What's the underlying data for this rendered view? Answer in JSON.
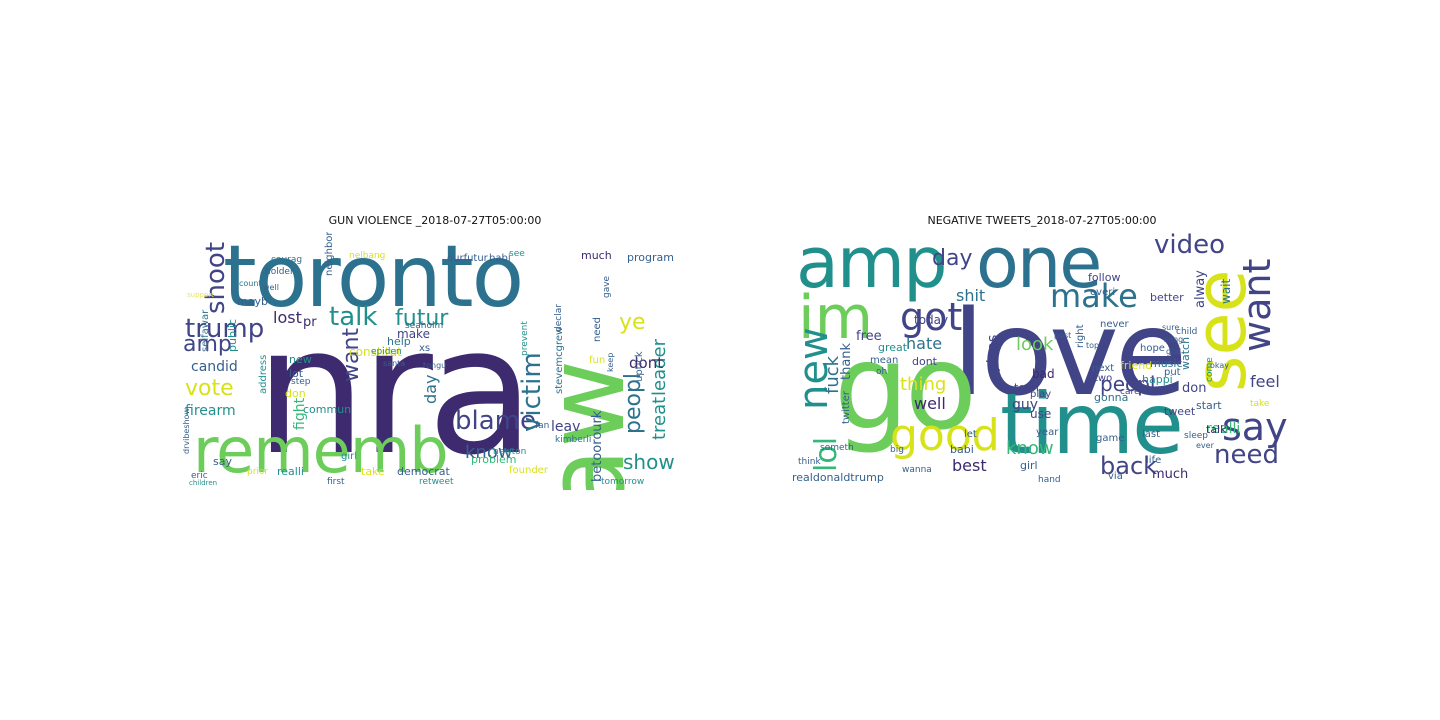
{
  "colors": {
    "purple": "#3e2a6e",
    "indigo": "#414487",
    "blue": "#355f8d",
    "slate": "#2c728e",
    "teal": "#21908d",
    "green": "#35b779",
    "lime": "#6ccd5a",
    "yellow": "#d8e219",
    "pale_yellow": "#e9e562"
  },
  "panels": [
    {
      "title": "GUN VIOLENCE _2018-07-27T05:00:00",
      "words": [
        {
          "text": "nra",
          "color": "purple"
        },
        {
          "text": "toronto",
          "color": "slate"
        },
        {
          "text": "law",
          "color": "lime"
        },
        {
          "text": "rememb",
          "color": "lime"
        },
        {
          "text": "trump",
          "color": "indigo"
        },
        {
          "text": "shoot",
          "color": "indigo"
        },
        {
          "text": "talk",
          "color": "teal"
        },
        {
          "text": "futur",
          "color": "teal"
        },
        {
          "text": "amp",
          "color": "indigo"
        },
        {
          "text": "vote",
          "color": "yellow"
        },
        {
          "text": "want",
          "color": "indigo"
        },
        {
          "text": "lost",
          "color": "purple"
        },
        {
          "text": "firearm",
          "color": "teal"
        },
        {
          "text": "candid",
          "color": "blue"
        },
        {
          "text": "blame",
          "color": "indigo"
        },
        {
          "text": "victim",
          "color": "slate"
        },
        {
          "text": "peopl",
          "color": "slate"
        },
        {
          "text": "leader",
          "color": "teal"
        },
        {
          "text": "ye",
          "color": "yellow"
        },
        {
          "text": "treat",
          "color": "teal"
        },
        {
          "text": "show",
          "color": "teal"
        },
        {
          "text": "know",
          "color": "blue"
        },
        {
          "text": "dont",
          "color": "purple"
        },
        {
          "text": "betoorourk",
          "color": "blue"
        },
        {
          "text": "leav",
          "color": "indigo"
        },
        {
          "text": "day",
          "color": "slate"
        },
        {
          "text": "fight",
          "color": "green"
        },
        {
          "text": "constitut",
          "color": "yellow"
        },
        {
          "text": "public",
          "color": "teal"
        },
        {
          "text": "selfawar",
          "color": "slate"
        },
        {
          "text": "mayb",
          "color": "blue"
        },
        {
          "text": "pr",
          "color": "purple"
        },
        {
          "text": "make",
          "color": "indigo"
        },
        {
          "text": "help",
          "color": "slate"
        },
        {
          "text": "new",
          "color": "teal"
        },
        {
          "text": "lot",
          "color": "blue"
        },
        {
          "text": "don",
          "color": "yellow"
        },
        {
          "text": "commun",
          "color": "teal"
        },
        {
          "text": "say",
          "color": "blue"
        },
        {
          "text": "realli",
          "color": "teal"
        },
        {
          "text": "take",
          "color": "yellow"
        },
        {
          "text": "democrat",
          "color": "blue"
        },
        {
          "text": "problem",
          "color": "green"
        },
        {
          "text": "founder",
          "color": "yellow"
        },
        {
          "text": "stevemcgrew",
          "color": "slate"
        },
        {
          "text": "program",
          "color": "blue"
        },
        {
          "text": "much",
          "color": "purple"
        },
        {
          "text": "need",
          "color": "blue"
        },
        {
          "text": "prevent",
          "color": "teal"
        },
        {
          "text": "uptick",
          "color": "blue"
        },
        {
          "text": "babi",
          "color": "blue"
        },
        {
          "text": "ourfutur",
          "color": "blue"
        },
        {
          "text": "holder",
          "color": "blue"
        },
        {
          "text": "courag",
          "color": "slate"
        },
        {
          "text": "neighbor",
          "color": "blue"
        },
        {
          "text": "xs",
          "color": "blue"
        },
        {
          "text": "address",
          "color": "teal"
        },
        {
          "text": "step",
          "color": "blue"
        },
        {
          "text": "prior",
          "color": "yellow"
        },
        {
          "text": "eric",
          "color": "blue"
        },
        {
          "text": "drvibeshow",
          "color": "blue"
        },
        {
          "text": "first",
          "color": "blue"
        },
        {
          "text": "retweet",
          "color": "teal"
        },
        {
          "text": "newton",
          "color": "teal"
        },
        {
          "text": "kimberli",
          "color": "slate"
        },
        {
          "text": "fan",
          "color": "blue"
        },
        {
          "text": "fun",
          "color": "yellow"
        },
        {
          "text": "keep",
          "color": "blue"
        },
        {
          "text": "gave",
          "color": "blue"
        },
        {
          "text": "declar",
          "color": "blue"
        },
        {
          "text": "tomorrow",
          "color": "teal"
        },
        {
          "text": "girl",
          "color": "teal"
        },
        {
          "text": "seaholm",
          "color": "blue"
        },
        {
          "text": "epiden",
          "color": "teal"
        },
        {
          "text": "santa",
          "color": "blue"
        },
        {
          "text": "well",
          "color": "blue"
        },
        {
          "text": "see",
          "color": "teal"
        },
        {
          "text": "nelbang",
          "color": "yellow"
        },
        {
          "text": "tongu",
          "color": "blue"
        },
        {
          "text": "support",
          "color": "pale_yellow"
        },
        {
          "text": "children",
          "color": "teal"
        },
        {
          "text": "countri",
          "color": "slate"
        }
      ]
    },
    {
      "title": "NEGATIVE TWEETS_2018-07-27T05:00:00",
      "words": [
        {
          "text": "love",
          "color": "indigo"
        },
        {
          "text": "time",
          "color": "teal"
        },
        {
          "text": "go",
          "color": "lime"
        },
        {
          "text": "amp",
          "color": "teal"
        },
        {
          "text": "one",
          "color": "slate"
        },
        {
          "text": "see",
          "color": "yellow"
        },
        {
          "text": "im",
          "color": "lime"
        },
        {
          "text": "new",
          "color": "teal"
        },
        {
          "text": "want",
          "color": "indigo"
        },
        {
          "text": "video",
          "color": "indigo"
        },
        {
          "text": "make",
          "color": "slate"
        },
        {
          "text": "got",
          "color": "indigo"
        },
        {
          "text": "good",
          "color": "yellow"
        },
        {
          "text": "say",
          "color": "indigo"
        },
        {
          "text": "need",
          "color": "indigo"
        },
        {
          "text": "back",
          "color": "indigo"
        },
        {
          "text": "lol",
          "color": "green"
        },
        {
          "text": "peopl",
          "color": "indigo"
        },
        {
          "text": "day",
          "color": "indigo"
        },
        {
          "text": "look",
          "color": "lime"
        },
        {
          "text": "fuck",
          "color": "slate"
        },
        {
          "text": "shit",
          "color": "slate"
        },
        {
          "text": "hate",
          "color": "slate"
        },
        {
          "text": "thing",
          "color": "yellow"
        },
        {
          "text": "well",
          "color": "purple"
        },
        {
          "text": "best",
          "color": "purple"
        },
        {
          "text": "know",
          "color": "green"
        },
        {
          "text": "feel",
          "color": "indigo"
        },
        {
          "text": "realli",
          "color": "green"
        },
        {
          "text": "alway",
          "color": "indigo"
        },
        {
          "text": "pleas",
          "color": "indigo"
        },
        {
          "text": "thank",
          "color": "blue"
        },
        {
          "text": "free",
          "color": "indigo"
        },
        {
          "text": "today",
          "color": "indigo"
        },
        {
          "text": "guy",
          "color": "indigo"
        },
        {
          "text": "much",
          "color": "purple"
        },
        {
          "text": "don",
          "color": "indigo"
        },
        {
          "text": "talk",
          "color": "purple"
        },
        {
          "text": "start",
          "color": "blue"
        },
        {
          "text": "use",
          "color": "indigo"
        },
        {
          "text": "dont",
          "color": "indigo"
        },
        {
          "text": "bad",
          "color": "purple"
        },
        {
          "text": "follow",
          "color": "indigo"
        },
        {
          "text": "friend",
          "color": "yellow"
        },
        {
          "text": "music",
          "color": "slate"
        },
        {
          "text": "gonna",
          "color": "slate"
        },
        {
          "text": "happi",
          "color": "teal"
        },
        {
          "text": "wait",
          "color": "slate"
        },
        {
          "text": "watch",
          "color": "slate"
        },
        {
          "text": "tweet",
          "color": "indigo"
        },
        {
          "text": "girl",
          "color": "blue"
        },
        {
          "text": "babi",
          "color": "blue"
        },
        {
          "text": "realdonaldtrump",
          "color": "blue"
        },
        {
          "text": "via",
          "color": "blue"
        },
        {
          "text": "teen",
          "color": "indigo"
        },
        {
          "text": "great",
          "color": "teal"
        },
        {
          "text": "mean",
          "color": "blue"
        },
        {
          "text": "twitter",
          "color": "blue"
        },
        {
          "text": "play",
          "color": "indigo"
        },
        {
          "text": "game",
          "color": "blue"
        },
        {
          "text": "next",
          "color": "blue"
        },
        {
          "text": "two",
          "color": "indigo"
        },
        {
          "text": "hope",
          "color": "blue"
        },
        {
          "text": "better",
          "color": "indigo"
        },
        {
          "text": "everi",
          "color": "blue"
        },
        {
          "text": "last",
          "color": "blue"
        },
        {
          "text": "life",
          "color": "blue"
        },
        {
          "text": "let",
          "color": "blue"
        },
        {
          "text": "year",
          "color": "blue"
        },
        {
          "text": "right",
          "color": "blue"
        },
        {
          "text": "put",
          "color": "blue"
        },
        {
          "text": "never",
          "color": "blue"
        },
        {
          "text": "think",
          "color": "blue"
        },
        {
          "text": "someth",
          "color": "blue"
        },
        {
          "text": "oh",
          "color": "blue"
        },
        {
          "text": "big",
          "color": "blue"
        },
        {
          "text": "wanna",
          "color": "blue"
        },
        {
          "text": "hand",
          "color": "blue"
        },
        {
          "text": "sleep",
          "color": "blue"
        },
        {
          "text": "take",
          "color": "yellow"
        },
        {
          "text": "come",
          "color": "teal"
        },
        {
          "text": "child",
          "color": "blue"
        },
        {
          "text": "care",
          "color": "indigo"
        },
        {
          "text": "god",
          "color": "blue"
        },
        {
          "text": "song",
          "color": "blue"
        },
        {
          "text": "sure",
          "color": "blue"
        },
        {
          "text": "post",
          "color": "blue"
        },
        {
          "text": "top",
          "color": "blue"
        },
        {
          "text": "ever",
          "color": "blue"
        },
        {
          "text": "okay",
          "color": "blue"
        }
      ]
    }
  ]
}
